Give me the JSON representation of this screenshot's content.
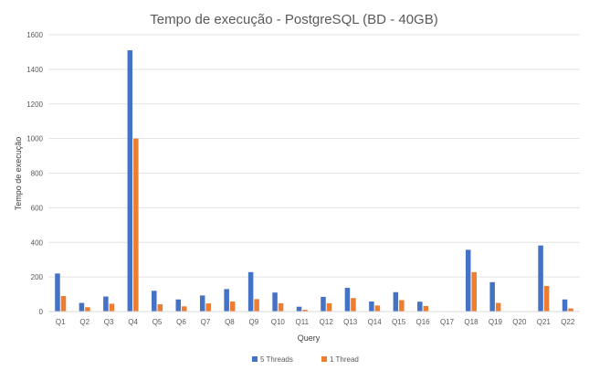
{
  "chart_data": {
    "type": "bar",
    "title": "Tempo de execução - PostgreSQL (BD - 40GB)",
    "xlabel": "Query",
    "ylabel": "Tempo de execução",
    "ylim": [
      0,
      1600
    ],
    "yticks": [
      0,
      200,
      400,
      600,
      800,
      1000,
      1200,
      1400,
      1600
    ],
    "grid": true,
    "legend_position": "bottom",
    "categories": [
      "Q1",
      "Q2",
      "Q3",
      "Q4",
      "Q5",
      "Q6",
      "Q7",
      "Q8",
      "Q9",
      "Q10",
      "Q11",
      "Q12",
      "Q13",
      "Q14",
      "Q15",
      "Q16",
      "Q17",
      "Q18",
      "Q19",
      "Q20",
      "Q21",
      "Q22"
    ],
    "series": [
      {
        "name": "5 Threads",
        "color": "#4472C4",
        "values": [
          220,
          50,
          87,
          1510,
          120,
          70,
          93,
          130,
          228,
          110,
          28,
          85,
          137,
          58,
          112,
          57,
          0,
          357,
          170,
          0,
          382,
          70
        ]
      },
      {
        "name": "1 Thread",
        "color": "#ED7D31",
        "values": [
          90,
          25,
          45,
          1000,
          42,
          30,
          47,
          58,
          72,
          48,
          10,
          48,
          78,
          35,
          66,
          32,
          0,
          228,
          50,
          0,
          148,
          18
        ]
      }
    ]
  }
}
